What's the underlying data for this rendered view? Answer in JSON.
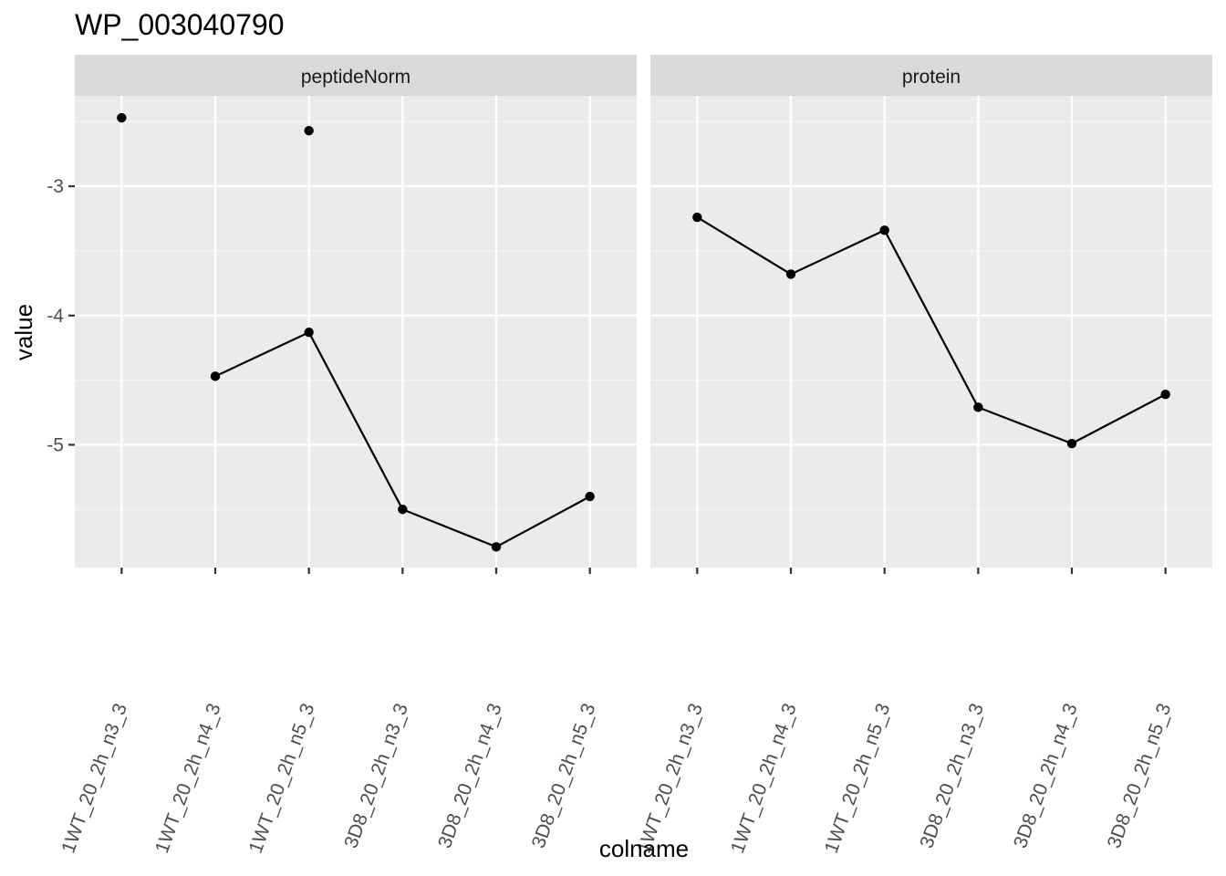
{
  "chart_data": {
    "type": "line",
    "title": "WP_003040790",
    "xlabel": "colname",
    "ylabel": "value",
    "ylim": [
      -5.95,
      -2.3
    ],
    "yticks": [
      -3,
      -4,
      -5
    ],
    "ytick_labels": [
      "-3",
      "-4",
      "-5"
    ],
    "grid": true,
    "categories": [
      "1WT_20_2h_n3_3",
      "1WT_20_2h_n4_3",
      "1WT_20_2h_n5_3",
      "3D8_20_2h_n3_3",
      "3D8_20_2h_n4_3",
      "3D8_20_2h_n5_3"
    ],
    "facets": [
      {
        "label": "peptideNorm",
        "values": [
          -2.47,
          null,
          -2.57,
          -5.5,
          -5.79,
          -5.4
        ],
        "extra_points": [
          {
            "category": "1WT_20_2h_n3_3",
            "value": -4.47
          }
        ],
        "isolated_points_note": "",
        "series_values_full": [
          -2.47,
          -4.47,
          -4.13,
          -5.5,
          -5.79,
          -5.4
        ],
        "line_values": [
          null,
          -4.47,
          -4.13,
          -5.5,
          -5.79,
          -5.4
        ],
        "points": [
          {
            "category": "1WT_20_2h_n3_3",
            "value": -2.47
          },
          {
            "category": "1WT_20_2h_n4_3",
            "value": -4.47
          },
          {
            "category": "1WT_20_2h_n5_3",
            "value": -2.57
          },
          {
            "category": "1WT_20_2h_n5_3",
            "value": -4.13
          },
          {
            "category": "3D8_20_2h_n3_3",
            "value": -5.5
          },
          {
            "category": "3D8_20_2h_n4_3",
            "value": -5.79
          },
          {
            "category": "3D8_20_2h_n5_3",
            "value": -5.4
          }
        ]
      },
      {
        "label": "protein",
        "line_values": [
          -3.24,
          -3.68,
          -3.34,
          -4.71,
          -4.99,
          -4.61
        ],
        "points": [
          {
            "category": "1WT_20_2h_n3_3",
            "value": -3.24
          },
          {
            "category": "1WT_20_2h_n4_3",
            "value": -3.68
          },
          {
            "category": "1WT_20_2h_n5_3",
            "value": -3.34
          },
          {
            "category": "3D8_20_2h_n3_3",
            "value": -4.71
          },
          {
            "category": "3D8_20_2h_n4_3",
            "value": -4.99
          },
          {
            "category": "3D8_20_2h_n5_3",
            "value": -4.61
          }
        ]
      }
    ],
    "colors": {
      "panel_bg": "#ebebeb",
      "strip_bg": "#d9d9d9",
      "grid_major": "#ffffff",
      "grid_minor": "#f5f5f5",
      "line": "#000000",
      "point": "#000000",
      "tick": "#333333"
    }
  }
}
